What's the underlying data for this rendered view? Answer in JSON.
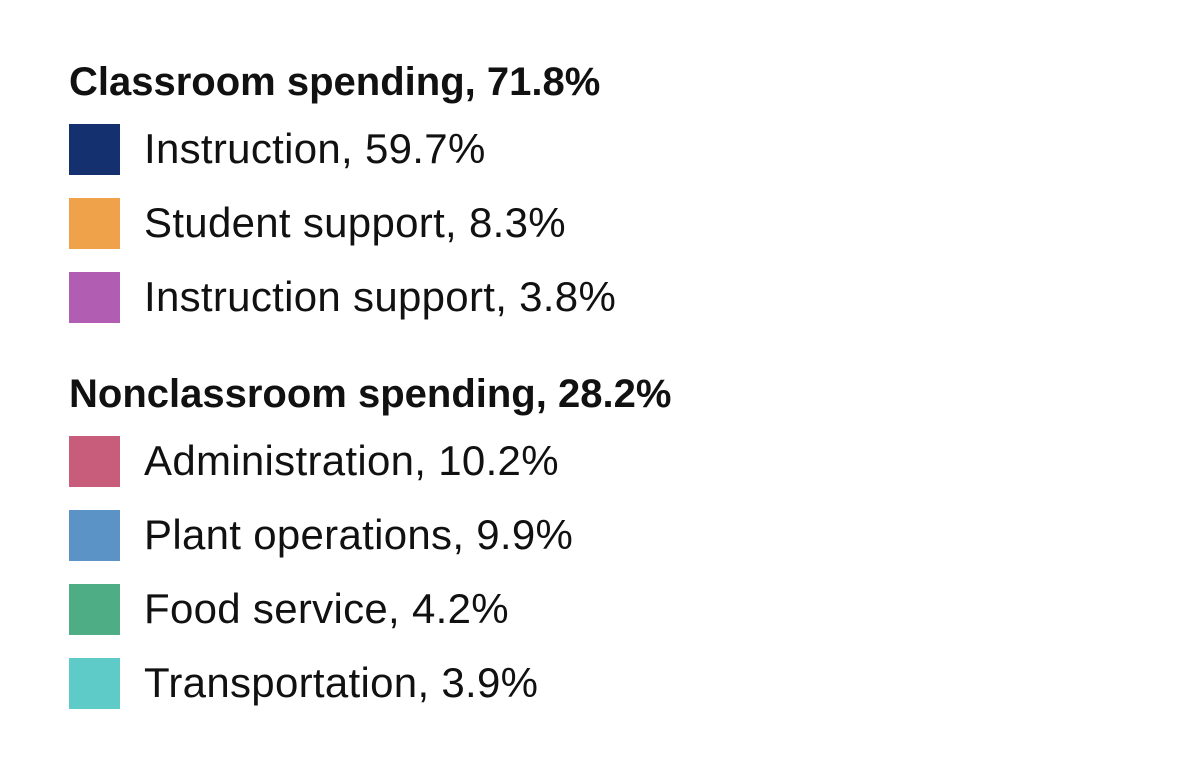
{
  "chart_data": {
    "type": "pie",
    "legend_placement": "full-frame",
    "groups": [
      {
        "label": "Classroom spending, 71.8%",
        "name": "Classroom spending",
        "value": 71.8,
        "items": [
          {
            "label": "Instruction, 59.7%",
            "name": "Instruction",
            "value": 59.7,
            "color": "#14306e"
          },
          {
            "label": "Student support, 8.3%",
            "name": "Student support",
            "value": 8.3,
            "color": "#f0a24a"
          },
          {
            "label": "Instruction support, 3.8%",
            "name": "Instruction support",
            "value": 3.8,
            "color": "#b15db1"
          }
        ]
      },
      {
        "label": "Nonclassroom spending, 28.2%",
        "name": "Nonclassroom spending",
        "value": 28.2,
        "items": [
          {
            "label": "Administration, 10.2%",
            "name": "Administration",
            "value": 10.2,
            "color": "#c85d7b"
          },
          {
            "label": "Plant operations, 9.9%",
            "name": "Plant operations",
            "value": 9.9,
            "color": "#5b93c7"
          },
          {
            "label": "Food service, 4.2%",
            "name": "Food service",
            "value": 4.2,
            "color": "#4fad85"
          },
          {
            "label": "Transportation, 3.9%",
            "name": "Transportation",
            "value": 3.9,
            "color": "#5ecbc9"
          }
        ]
      }
    ]
  }
}
